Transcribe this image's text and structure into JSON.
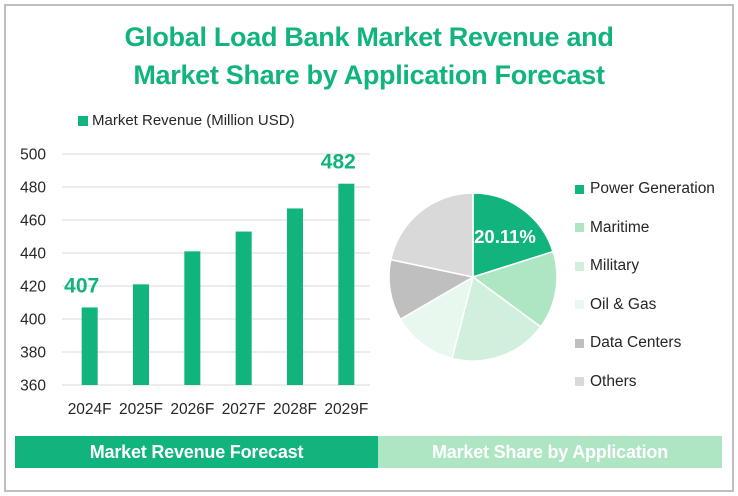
{
  "title_line1": "Global Load Bank Market Revenue and",
  "title_line2": "Market Share by Application Forecast",
  "colors": {
    "accent": "#10b47c",
    "light_accent": "#aee5c3",
    "grid": "#d9d9d9",
    "axis_text": "#262626",
    "border": "#bfbfbf"
  },
  "chart_data": [
    {
      "type": "bar",
      "title": "Market Revenue Forecast",
      "legend": "Market Revenue (Million USD)",
      "legend_position": "top",
      "categories": [
        "2024F",
        "2025F",
        "2026F",
        "2027F",
        "2028F",
        "2029F"
      ],
      "values": [
        407,
        421,
        441,
        453,
        467,
        482
      ],
      "data_labels": [
        {
          "index": 0,
          "text": "407"
        },
        {
          "index": 5,
          "text": "482"
        }
      ],
      "ylim": [
        360,
        500
      ],
      "yticks": [
        360,
        380,
        400,
        420,
        440,
        460,
        480,
        500
      ],
      "xlabel": "",
      "ylabel": "",
      "grid": true,
      "color": "#10b47c"
    },
    {
      "type": "pie",
      "title": "Market Share by Application",
      "legend_position": "right",
      "labels": [
        "Power Generation",
        "Maritime",
        "Military",
        "Oil & Gas",
        "Data Centers",
        "Others"
      ],
      "values": [
        20.11,
        15.0,
        18.9,
        12.6,
        11.7,
        21.69
      ],
      "colors": [
        "#10b47c",
        "#aee5c3",
        "#d0f0dd",
        "#e8f8ee",
        "#bfbfbf",
        "#d9d9d9"
      ],
      "data_labels": [
        {
          "index": 0,
          "text": "20.11%"
        }
      ],
      "start_angle": "12 o'clock",
      "direction": "clockwise"
    }
  ],
  "footer_tabs": [
    {
      "label": "Market Revenue Forecast"
    },
    {
      "label": "Market Share by Application"
    }
  ]
}
